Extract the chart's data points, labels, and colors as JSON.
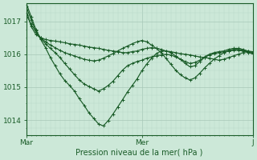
{
  "bg_color": "#cce8d8",
  "plot_bg_color": "#cce8d8",
  "line_color": "#1a5c28",
  "grid_color_major": "#a8c8b8",
  "grid_color_minor": "#b8d8c8",
  "xlabel": "Pression niveau de la mer( hPa )",
  "xtick_labels": [
    "Mar",
    "Mer",
    "J"
  ],
  "xtick_positions": [
    0,
    24,
    47
  ],
  "ytick_labels": [
    "1014",
    "1015",
    "1016",
    "1017"
  ],
  "ytick_values": [
    1014,
    1015,
    1016,
    1017
  ],
  "ylim": [
    1013.55,
    1017.55
  ],
  "xlim": [
    0,
    47
  ],
  "lines": [
    [
      1017.35,
      1016.85,
      1016.6,
      1016.5,
      1016.45,
      1016.42,
      1016.4,
      1016.38,
      1016.35,
      1016.32,
      1016.3,
      1016.28,
      1016.25,
      1016.22,
      1016.2,
      1016.18,
      1016.15,
      1016.12,
      1016.1,
      1016.08,
      1016.05,
      1016.05,
      1016.08,
      1016.1,
      1016.15,
      1016.18,
      1016.2,
      1016.18,
      1016.15,
      1016.1,
      1016.08,
      1016.05,
      1016.02,
      1016.0,
      1015.98,
      1015.95,
      1015.92,
      1015.9,
      1015.88,
      1015.85,
      1015.82,
      1015.85,
      1015.9,
      1015.95,
      1016.0,
      1016.05,
      1016.1,
      1016.08
    ],
    [
      1017.55,
      1017.15,
      1016.75,
      1016.45,
      1016.2,
      1015.9,
      1015.65,
      1015.4,
      1015.2,
      1015.05,
      1014.88,
      1014.65,
      1014.45,
      1014.22,
      1014.05,
      1013.88,
      1013.82,
      1013.98,
      1014.18,
      1014.4,
      1014.62,
      1014.85,
      1015.05,
      1015.25,
      1015.5,
      1015.7,
      1015.88,
      1016.02,
      1016.1,
      1016.1,
      1016.05,
      1015.95,
      1015.85,
      1015.78,
      1015.72,
      1015.75,
      1015.82,
      1015.92,
      1016.0,
      1016.05,
      1016.08,
      1016.1,
      1016.15,
      1016.18,
      1016.18,
      1016.15,
      1016.1,
      1016.05
    ],
    [
      1017.45,
      1017.05,
      1016.72,
      1016.48,
      1016.32,
      1016.18,
      1016.05,
      1015.9,
      1015.72,
      1015.55,
      1015.38,
      1015.22,
      1015.1,
      1015.02,
      1014.95,
      1014.88,
      1014.95,
      1015.05,
      1015.18,
      1015.35,
      1015.52,
      1015.65,
      1015.72,
      1015.78,
      1015.82,
      1015.88,
      1015.92,
      1015.95,
      1015.98,
      1016.0,
      1015.98,
      1015.92,
      1015.85,
      1015.72,
      1015.62,
      1015.65,
      1015.78,
      1015.9,
      1015.98,
      1016.02,
      1016.05,
      1016.08,
      1016.1,
      1016.12,
      1016.12,
      1016.1,
      1016.05,
      1016.02
    ],
    [
      1017.2,
      1016.92,
      1016.68,
      1016.5,
      1016.38,
      1016.28,
      1016.2,
      1016.12,
      1016.05,
      1016.0,
      1015.95,
      1015.9,
      1015.85,
      1015.82,
      1015.8,
      1015.82,
      1015.88,
      1015.95,
      1016.02,
      1016.1,
      1016.18,
      1016.25,
      1016.32,
      1016.38,
      1016.42,
      1016.38,
      1016.28,
      1016.18,
      1016.05,
      1015.88,
      1015.7,
      1015.52,
      1015.38,
      1015.28,
      1015.22,
      1015.28,
      1015.42,
      1015.58,
      1015.72,
      1015.85,
      1015.95,
      1016.05,
      1016.1,
      1016.15,
      1016.15,
      1016.12,
      1016.08,
      1016.02
    ]
  ]
}
